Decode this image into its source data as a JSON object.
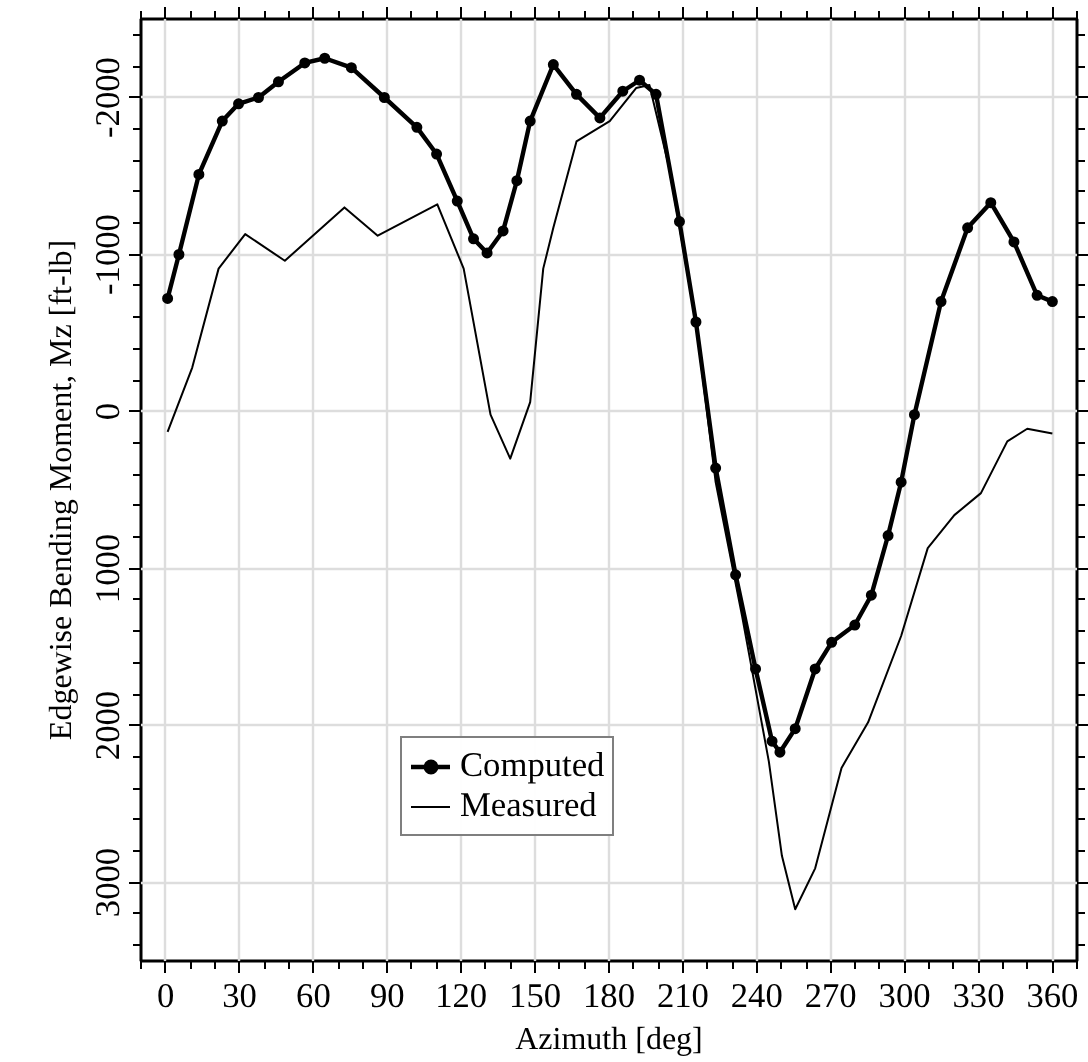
{
  "chart_data": {
    "type": "line",
    "xlabel": "Azimuth [deg]",
    "ylabel": "Edgewise Bending Moment, Mz [ft-lb]",
    "xlim": [
      -10,
      370
    ],
    "ylim": [
      3500,
      -2500
    ],
    "xticks": [
      {
        "value": -10,
        "label": null
      },
      0,
      {
        "value": 10,
        "label": null
      },
      {
        "value": 20,
        "label": null
      },
      30,
      {
        "value": 40,
        "label": null
      },
      {
        "value": 50,
        "label": null
      },
      60,
      {
        "value": 70,
        "label": null
      },
      {
        "value": 80,
        "label": null
      },
      90,
      {
        "value": 100,
        "label": null
      },
      {
        "value": 110,
        "label": null
      },
      120,
      {
        "value": 130,
        "label": null
      },
      {
        "value": 140,
        "label": null
      },
      150,
      {
        "value": 160,
        "label": null
      },
      {
        "value": 170,
        "label": null
      },
      180,
      {
        "value": 190,
        "label": null
      },
      {
        "value": 200,
        "label": null
      },
      210,
      {
        "value": 220,
        "label": null
      },
      {
        "value": 230,
        "label": null
      },
      240,
      {
        "value": 250,
        "label": null
      },
      {
        "value": 260,
        "label": null
      },
      270,
      {
        "value": 280,
        "label": null
      },
      {
        "value": 290,
        "label": null
      },
      300,
      {
        "value": 310,
        "label": null
      },
      {
        "value": 320,
        "label": null
      },
      330,
      {
        "value": 340,
        "label": null
      },
      {
        "value": 350,
        "label": null
      },
      360,
      {
        "value": 370,
        "label": null
      }
    ],
    "yticks": [
      {
        "value": -2400,
        "label": null
      },
      {
        "value": -2200,
        "label": null
      },
      -2000,
      {
        "value": -1800,
        "label": null
      },
      {
        "value": -1600,
        "label": null
      },
      {
        "value": -1400,
        "label": null
      },
      {
        "value": -1200,
        "label": null
      },
      -1000,
      {
        "value": -800,
        "label": null
      },
      {
        "value": -600,
        "label": null
      },
      {
        "value": -400,
        "label": null
      },
      {
        "value": -200,
        "label": null
      },
      0,
      {
        "value": 200,
        "label": null
      },
      {
        "value": 400,
        "label": null
      },
      {
        "value": 600,
        "label": null
      },
      {
        "value": 800,
        "label": null
      },
      1000,
      {
        "value": 1200,
        "label": null
      },
      {
        "value": 1400,
        "label": null
      },
      {
        "value": 1600,
        "label": null
      },
      {
        "value": 1800,
        "label": null
      },
      2000,
      {
        "value": 2200,
        "label": null
      },
      {
        "value": 2400,
        "label": null
      },
      {
        "value": 2600,
        "label": null
      },
      {
        "value": 2800,
        "label": null
      },
      3000,
      {
        "value": 3200,
        "label": null
      },
      {
        "value": 3400,
        "label": null
      }
    ],
    "grid": true,
    "legend": "bottom left",
    "line_style": "solid",
    "series": [
      {
        "name": "Computed",
        "color": "#000000",
        "marker": "circle",
        "x": [
          0.8,
          5.4,
          13.5,
          23,
          29.6,
          37.7,
          45.8,
          56.5,
          64.6,
          75.4,
          88.8,
          102,
          110,
          118.4,
          125,
          130.5,
          137,
          142.6,
          148,
          157.4,
          166.8,
          176.3,
          185.6,
          192.4,
          199.1,
          208.6,
          215.3,
          223.3,
          231.4,
          239.5,
          246.2,
          249.4,
          255.6,
          263.7,
          270.4,
          279.8,
          286.5,
          293.3,
          298.6,
          304,
          314.8,
          325.6,
          335,
          344.4,
          353.8,
          360
        ],
        "values": [
          -720,
          -1000,
          -1510,
          -1850,
          -1960,
          -2000,
          -2100,
          -2220,
          -2250,
          -2190,
          -2000,
          -1810,
          -1640,
          -1340,
          -1100,
          -1010,
          -1150,
          -1470,
          -1850,
          -2210,
          -2020,
          -1870,
          -2040,
          -2110,
          -2020,
          -1210,
          -570,
          360,
          1040,
          1640,
          2100,
          2170,
          2020,
          1640,
          1470,
          1360,
          1170,
          790,
          450,
          20,
          -700,
          -1170,
          -1330,
          -1080,
          -740,
          -700
        ]
      },
      {
        "name": "Measured",
        "color": "#000000",
        "marker": "none",
        "x": [
          0.8,
          10.8,
          21.5,
          32.3,
          48.4,
          72.6,
          86.1,
          110.3,
          121,
          131.9,
          139.9,
          148,
          153.3,
          157.4,
          166.8,
          180.3,
          191,
          196.4,
          204.5,
          215.3,
          223.3,
          234,
          244.9,
          250.2,
          255.6,
          263.7,
          274.4,
          285.2,
          298.6,
          309.4,
          320.2,
          331,
          341.7,
          349.8,
          360
        ],
        "values": [
          130,
          -280,
          -910,
          -1130,
          -960,
          -1300,
          -1120,
          -1320,
          -910,
          20,
          300,
          -60,
          -910,
          -1170,
          -1720,
          -1850,
          -2060,
          -2080,
          -1550,
          -570,
          450,
          1300,
          2230,
          2830,
          3170,
          2910,
          2270,
          1980,
          1430,
          870,
          660,
          520,
          190,
          110,
          140
        ]
      }
    ]
  }
}
